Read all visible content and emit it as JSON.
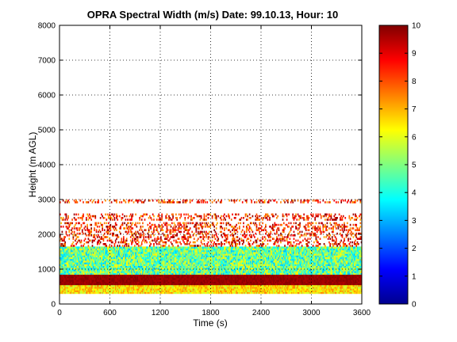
{
  "chart_data": [
    {
      "type": "heatmap",
      "title": "OPRA Spectral Width (m/s)  Date: 99.10.13, Hour: 10",
      "xlabel": "Time (s)",
      "ylabel": "Height (m AGL)",
      "xlim": [
        0,
        3600
      ],
      "ylim": [
        0,
        8000
      ],
      "x_ticks": [
        "0",
        "600",
        "1200",
        "1800",
        "2400",
        "3000",
        "3600"
      ],
      "x_tick_values": [
        0,
        600,
        1200,
        1800,
        2400,
        3000,
        3600
      ],
      "y_ticks": [
        "0",
        "1000",
        "2000",
        "3000",
        "4000",
        "5000",
        "6000",
        "7000",
        "8000"
      ],
      "y_tick_values": [
        0,
        1000,
        2000,
        3000,
        4000,
        5000,
        6000,
        7000,
        8000
      ],
      "grid": true,
      "layers": [
        {
          "height_range": [
            300,
            550
          ],
          "spectral_width_range": [
            5.5,
            7.5
          ],
          "coverage": "continuous"
        },
        {
          "height_range": [
            550,
            850
          ],
          "spectral_width_range": [
            9.5,
            10
          ],
          "coverage": "continuous"
        },
        {
          "height_range": [
            850,
            1650
          ],
          "spectral_width_range": [
            3.0,
            6.5
          ],
          "coverage": "continuous"
        },
        {
          "height_range": [
            1650,
            2350
          ],
          "spectral_width_range": [
            7.0,
            10
          ],
          "coverage": "sparse"
        },
        {
          "height_range": [
            2400,
            2600
          ],
          "spectral_width_range": [
            7.0,
            10
          ],
          "coverage": "sparse"
        },
        {
          "height_range": [
            2900,
            3000
          ],
          "spectral_width_range": [
            7.0,
            10
          ],
          "coverage": "sparse"
        }
      ]
    },
    {
      "type": "colorbar",
      "range": [
        0,
        10
      ],
      "ticks": [
        "0",
        "1",
        "2",
        "3",
        "4",
        "5",
        "6",
        "7",
        "8",
        "9",
        "10"
      ],
      "colormap": "jet"
    }
  ]
}
